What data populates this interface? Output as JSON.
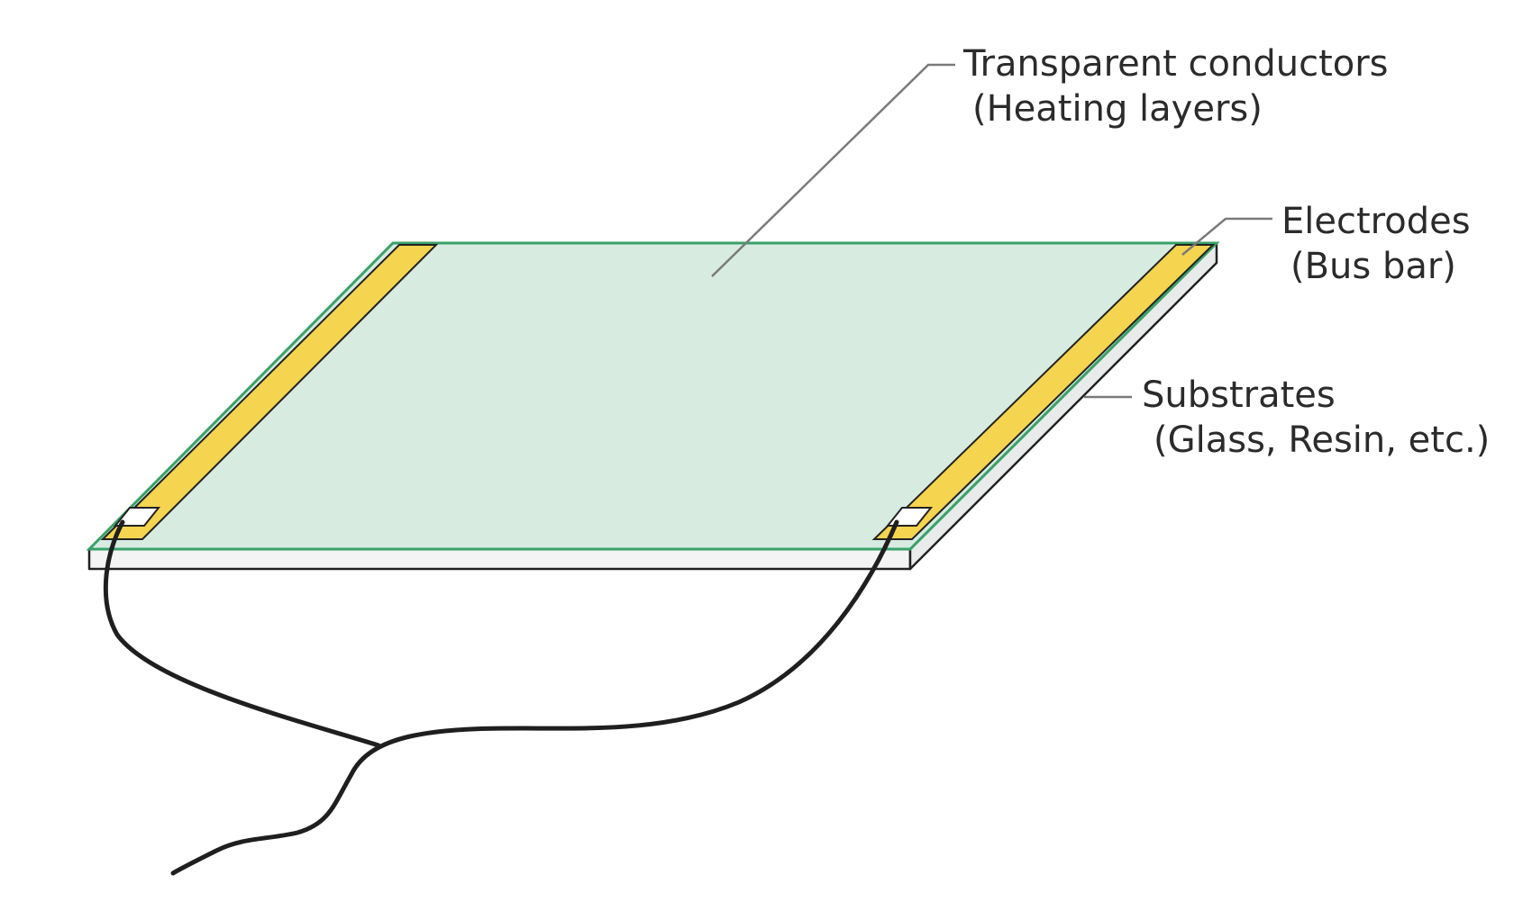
{
  "labels": {
    "conductors_line1": "Transparent conductors",
    "conductors_line2": "(Heating layers)",
    "electrodes_line1": "Electrodes",
    "electrodes_line2": "(Bus bar)",
    "substrates_line1": "Substrates",
    "substrates_line2": "(Glass, Resin, etc.)"
  },
  "colors": {
    "heating_layer_fill": "#d7ebe1",
    "heating_layer_edge": "#3aa169",
    "electrode_fill": "#f5d44f",
    "substrate_fill": "#f3f4f3",
    "outline": "#222222",
    "leader_line": "#7a7a7a",
    "wire": "#1f1f1f"
  }
}
